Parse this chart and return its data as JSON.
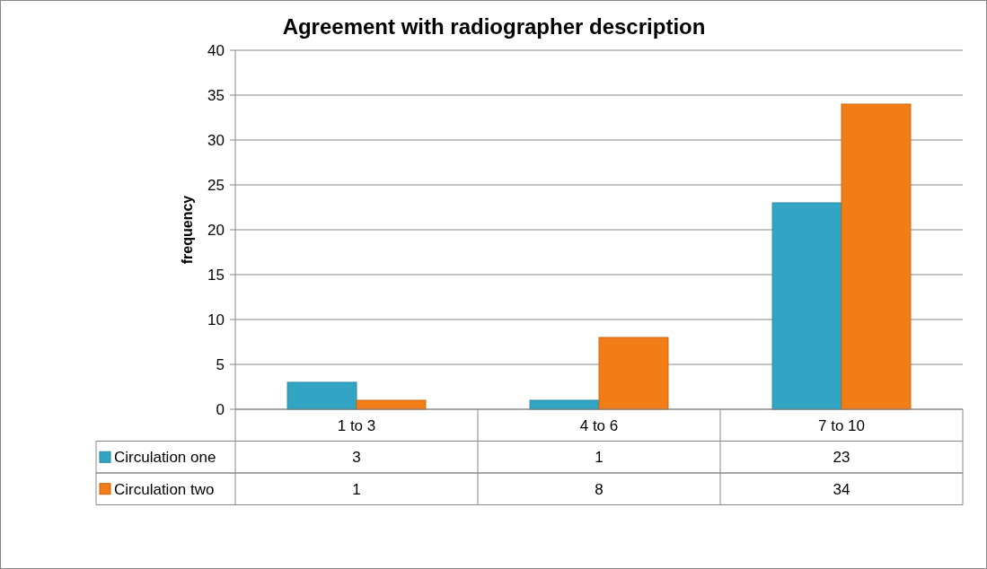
{
  "chart_data": {
    "type": "bar",
    "title": "Agreement with radiographer description",
    "ylabel": "frequency",
    "categories": [
      "1 to 3",
      "4 to 6",
      "7 to 10"
    ],
    "series": [
      {
        "name": "Circulation one",
        "color": "#31a5c3",
        "values": [
          3,
          1,
          23
        ]
      },
      {
        "name": "Circulation two",
        "color": "#f27c16",
        "values": [
          1,
          8,
          34
        ]
      }
    ],
    "ylim": [
      0,
      40
    ],
    "yticks": [
      0,
      5,
      10,
      15,
      20,
      25,
      30,
      35,
      40
    ],
    "grid": "y",
    "legend": "bottom",
    "data_labels": true
  }
}
